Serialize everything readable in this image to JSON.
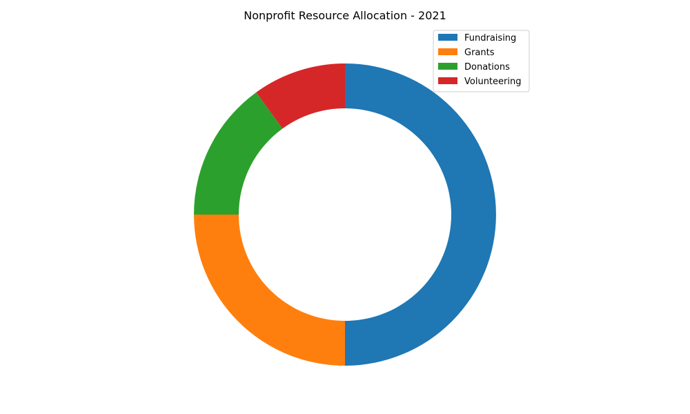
{
  "chart_data": {
    "type": "pie",
    "variant": "donut",
    "title": "Nonprofit Resource Allocation - 2021",
    "categories": [
      "Fundraising",
      "Grants",
      "Donations",
      "Volunteering"
    ],
    "values": [
      50,
      25,
      15,
      10
    ],
    "colors": [
      "#1f77b4",
      "#ff7f0e",
      "#2ca02c",
      "#d62728"
    ],
    "start_angle_deg": 90,
    "direction": "clockwise",
    "legend": {
      "placement": "top-right",
      "entries": [
        "Fundraising",
        "Grants",
        "Donations",
        "Volunteering"
      ]
    }
  }
}
